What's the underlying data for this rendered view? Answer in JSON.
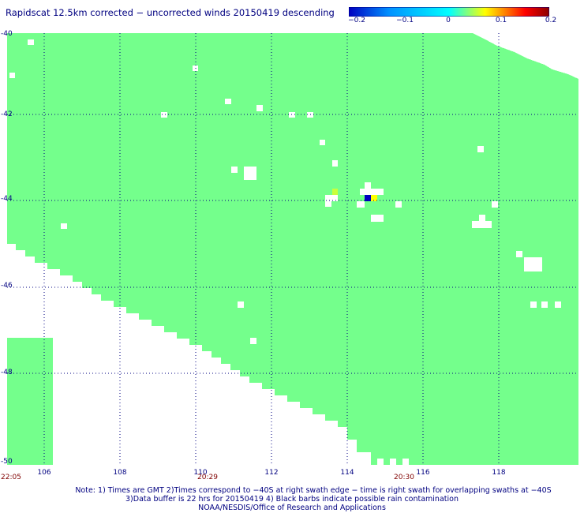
{
  "title": "Rapidscat 12.5km corrected − uncorrected winds 20150419 descending",
  "colorbar": {
    "tick_labels": [
      "−0.2",
      "−0.1",
      "0",
      "0.1",
      "0.2"
    ],
    "colors": [
      "#0000c0",
      "#0090ff",
      "#00ffff",
      "#ffff00",
      "#ff8000",
      "#ff0000",
      "#8b0000"
    ]
  },
  "map": {
    "lat_labels": [
      "-40",
      "-42",
      "-44",
      "-46",
      "-48",
      "-50"
    ],
    "lon_labels": [
      "106",
      "108",
      "110",
      "112",
      "114",
      "116",
      "118"
    ],
    "time_labels": [
      "22:05",
      "20:29",
      "20:30"
    ],
    "land_color": "#74ff8c",
    "lon_range": [
      104.9,
      119.9
    ],
    "lat_range": [
      -50,
      -40
    ]
  },
  "notes": {
    "line1": "Note: 1) Times are GMT 2)Times correspond to −40S at right swath edge − time is right swath for overlapping swaths at −40S",
    "line2": "3)Data buffer is 22 hrs for 20150419 4) Black barbs indicate possible rain contamination",
    "line3": "NOAA/NESDIS/Office of Research and Applications"
  }
}
